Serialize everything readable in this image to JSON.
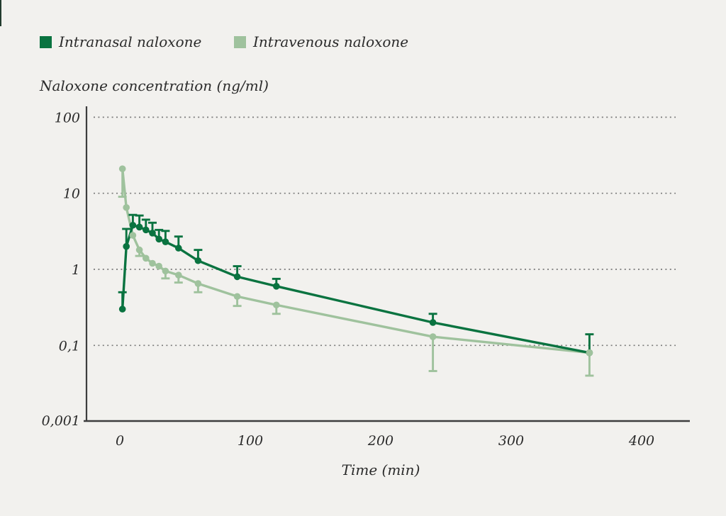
{
  "page": {
    "background": "#f2f1ee",
    "edge_accent_color": "#223c2e"
  },
  "legend": {
    "items": [
      {
        "label": "Intranasal naloxone",
        "color": "#0a7340"
      },
      {
        "label": "Intravenous naloxone",
        "color": "#9fc29d"
      }
    ]
  },
  "chart_data": {
    "type": "line",
    "title": "",
    "ylabel": "Naloxone concentration (ng/ml)",
    "xlabel": "Time (min)",
    "y_scale": "log",
    "ylim": [
      0.001,
      100
    ],
    "xlim": [
      0,
      400
    ],
    "grid": "horizontal dotted lines at powers of ten",
    "legend_position": "top-left",
    "axis_color": "#3d3d3d",
    "gridline_color": "#7a7a7a",
    "x_ticks": [
      {
        "value": 0,
        "label": "0"
      },
      {
        "value": 100,
        "label": "100"
      },
      {
        "value": 200,
        "label": "200"
      },
      {
        "value": 300,
        "label": "300"
      },
      {
        "value": 400,
        "label": "400"
      }
    ],
    "y_ticks": [
      {
        "value": 100,
        "label": "100",
        "gridline": true
      },
      {
        "value": 10,
        "label": "10",
        "gridline": true
      },
      {
        "value": 1,
        "label": "1",
        "gridline": true
      },
      {
        "value": 0.1,
        "label": "0,1",
        "gridline": true
      },
      {
        "value": 0.001,
        "label": "0,001",
        "gridline": false
      }
    ],
    "x_minutes": [
      2,
      5,
      10,
      15,
      20,
      25,
      30,
      35,
      45,
      60,
      90,
      120,
      240,
      360
    ],
    "series": [
      {
        "name": "Intranasal naloxone",
        "color": "#0a7340",
        "error_direction": "up",
        "values": [
          0.3,
          2.0,
          3.8,
          3.6,
          3.3,
          3.0,
          2.5,
          2.3,
          1.9,
          1.3,
          0.8,
          0.6,
          0.2,
          0.08
        ],
        "error_values": [
          0.5,
          3.4,
          5.2,
          5.1,
          4.5,
          4.1,
          3.3,
          3.2,
          2.7,
          1.8,
          1.1,
          0.75,
          0.26,
          0.14
        ]
      },
      {
        "name": "Intravenous naloxone",
        "color": "#9fc29d",
        "error_direction": "down",
        "values": [
          21,
          6.5,
          2.8,
          1.8,
          1.4,
          1.2,
          1.1,
          0.95,
          0.84,
          0.65,
          0.44,
          0.34,
          0.13,
          0.08
        ],
        "error_values": [
          9,
          null,
          null,
          1.5,
          null,
          null,
          null,
          0.76,
          0.67,
          0.5,
          0.33,
          0.26,
          0.046,
          0.04
        ]
      }
    ]
  }
}
